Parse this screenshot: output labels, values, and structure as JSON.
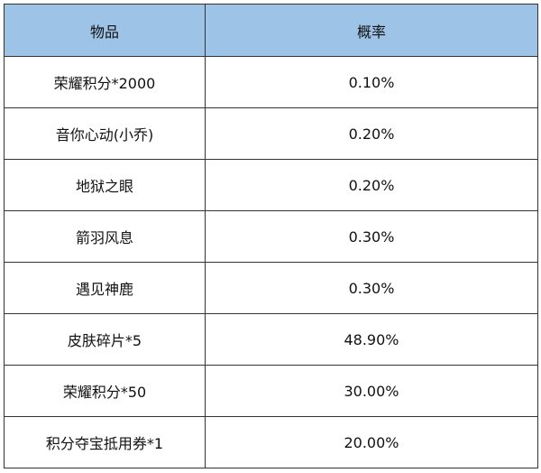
{
  "table": {
    "headers": [
      "物品",
      "概率"
    ],
    "rows": [
      [
        "荣耀积分*2000",
        "0.10%"
      ],
      [
        "音你心动(小乔)",
        "0.20%"
      ],
      [
        "地狱之眼",
        "0.20%"
      ],
      [
        "箭羽风息",
        "0.30%"
      ],
      [
        "遇见神鹿",
        "0.30%"
      ],
      [
        "皮肤碎片*5",
        "48.90%"
      ],
      [
        "荣耀积分*50",
        "30.00%"
      ],
      [
        "积分夺宝抵用券*1",
        "20.00%"
      ]
    ]
  },
  "colors": {
    "header_bg": "#9dc3e6",
    "border": "#333333"
  }
}
